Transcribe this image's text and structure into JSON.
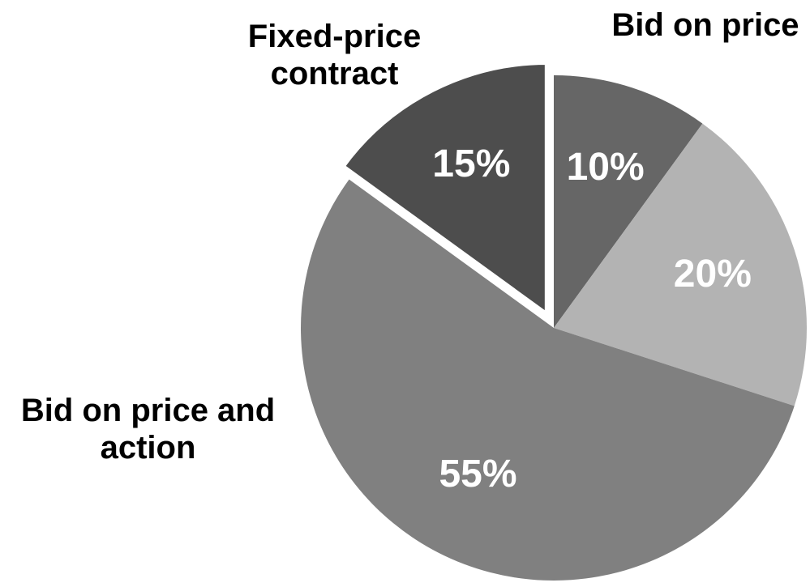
{
  "chart_data": {
    "type": "pie",
    "categories": [
      "Bid on price",
      null,
      "Bid on price and action",
      "Fixed-price contract"
    ],
    "values": [
      10,
      20,
      55,
      15
    ],
    "value_labels": [
      "10%",
      "20%",
      "55%",
      "15%"
    ],
    "colors": [
      "#666666",
      "#b3b3b3",
      "#808080",
      "#4d4d4d"
    ],
    "exploded": [
      false,
      false,
      false,
      true
    ]
  }
}
